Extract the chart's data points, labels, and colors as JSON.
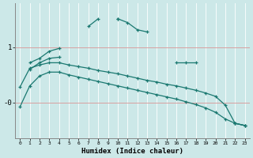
{
  "xlabel": "Humidex (Indice chaleur)",
  "background_color": "#cce8e8",
  "line_color": "#1a7870",
  "x": [
    0,
    1,
    2,
    3,
    4,
    5,
    6,
    7,
    8,
    9,
    10,
    11,
    12,
    13,
    14,
    15,
    16,
    17,
    18,
    19,
    20,
    21,
    22,
    23
  ],
  "y_spiky": [
    null,
    0.72,
    0.8,
    0.93,
    0.98,
    null,
    null,
    1.38,
    1.52,
    null,
    1.52,
    1.45,
    1.32,
    1.28,
    null,
    null,
    0.72,
    0.72,
    0.72,
    null,
    null,
    null,
    -0.38,
    -0.42
  ],
  "y_smooth": [
    null,
    0.6,
    0.72,
    0.8,
    0.82,
    null,
    null,
    null,
    null,
    null,
    1.52,
    null,
    null,
    null,
    null,
    null,
    null,
    null,
    null,
    null,
    null,
    null,
    null,
    null
  ],
  "y_line3": [
    0.28,
    0.62,
    0.68,
    0.72,
    0.72,
    0.68,
    0.65,
    0.62,
    0.58,
    0.55,
    0.52,
    0.48,
    0.44,
    0.4,
    0.37,
    0.33,
    0.3,
    0.26,
    0.22,
    0.17,
    0.11,
    -0.05,
    -0.38,
    -0.42
  ],
  "y_line4": [
    -0.08,
    0.3,
    0.48,
    0.55,
    0.55,
    0.5,
    0.46,
    0.42,
    0.38,
    0.34,
    0.3,
    0.26,
    0.22,
    0.18,
    0.14,
    0.1,
    0.06,
    0.01,
    -0.04,
    -0.1,
    -0.18,
    -0.3,
    -0.38,
    -0.42
  ],
  "ylim": [
    -0.65,
    1.8
  ],
  "xlim": [
    -0.5,
    23.5
  ],
  "ytick_positions": [
    0.0,
    1.0
  ],
  "ytick_labels": [
    "-0",
    "1"
  ],
  "xtick_labels": [
    "0",
    "1",
    "2",
    "3",
    "4",
    "5",
    "6",
    "7",
    "8",
    "9",
    "10",
    "11",
    "12",
    "13",
    "14",
    "15",
    "16",
    "17",
    "18",
    "19",
    "20",
    "21",
    "22",
    "23"
  ]
}
